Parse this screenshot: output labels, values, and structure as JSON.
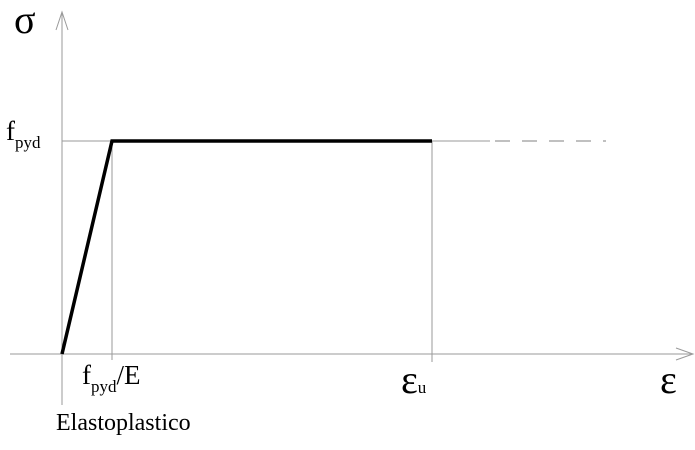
{
  "labels": {
    "y_axis_symbol": "σ",
    "x_axis_symbol": "ε",
    "fpyd_main": "f",
    "fpyd_sub": "pyd",
    "strain_yield_main": "f",
    "strain_yield_sub": "pyd",
    "strain_yield_suffix": "/E",
    "strain_ultimate_main": "ε",
    "strain_ultimate_sub": "u",
    "caption": "Elastoplastico"
  },
  "colors": {
    "curve": "#000000",
    "guides": "#9a9a9a",
    "background": "#ffffff"
  }
}
